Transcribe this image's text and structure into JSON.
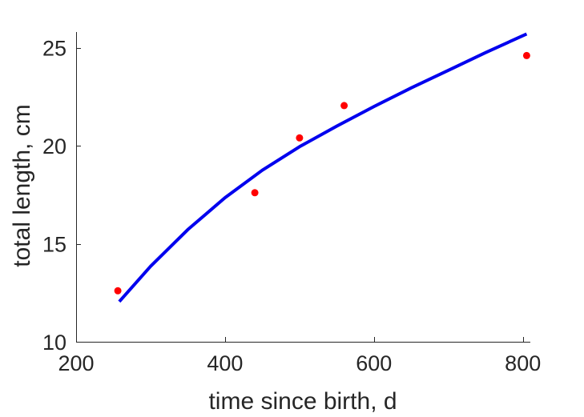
{
  "chart_data": {
    "type": "scatter",
    "title": "",
    "xlabel": "time since birth, d",
    "ylabel": "total length, cm",
    "xlim": [
      200,
      810
    ],
    "ylim": [
      10,
      25.8
    ],
    "xticks": [
      200,
      400,
      600,
      800
    ],
    "yticks": [
      10,
      15,
      20,
      25
    ],
    "grid": false,
    "box": false,
    "series": [
      {
        "type": "scatter",
        "color": "#ff0000",
        "x": [
          256,
          440,
          500,
          560,
          805
        ],
        "y": [
          12.6,
          17.6,
          20.4,
          22.05,
          24.6
        ]
      },
      {
        "type": "line",
        "color": "#0000ee",
        "x": [
          258,
          300,
          350,
          400,
          450,
          500,
          550,
          600,
          650,
          700,
          750,
          805
        ],
        "y": [
          12.05,
          13.85,
          15.72,
          17.35,
          18.75,
          19.95,
          21.0,
          22.0,
          22.95,
          23.85,
          24.75,
          25.7
        ]
      }
    ]
  }
}
